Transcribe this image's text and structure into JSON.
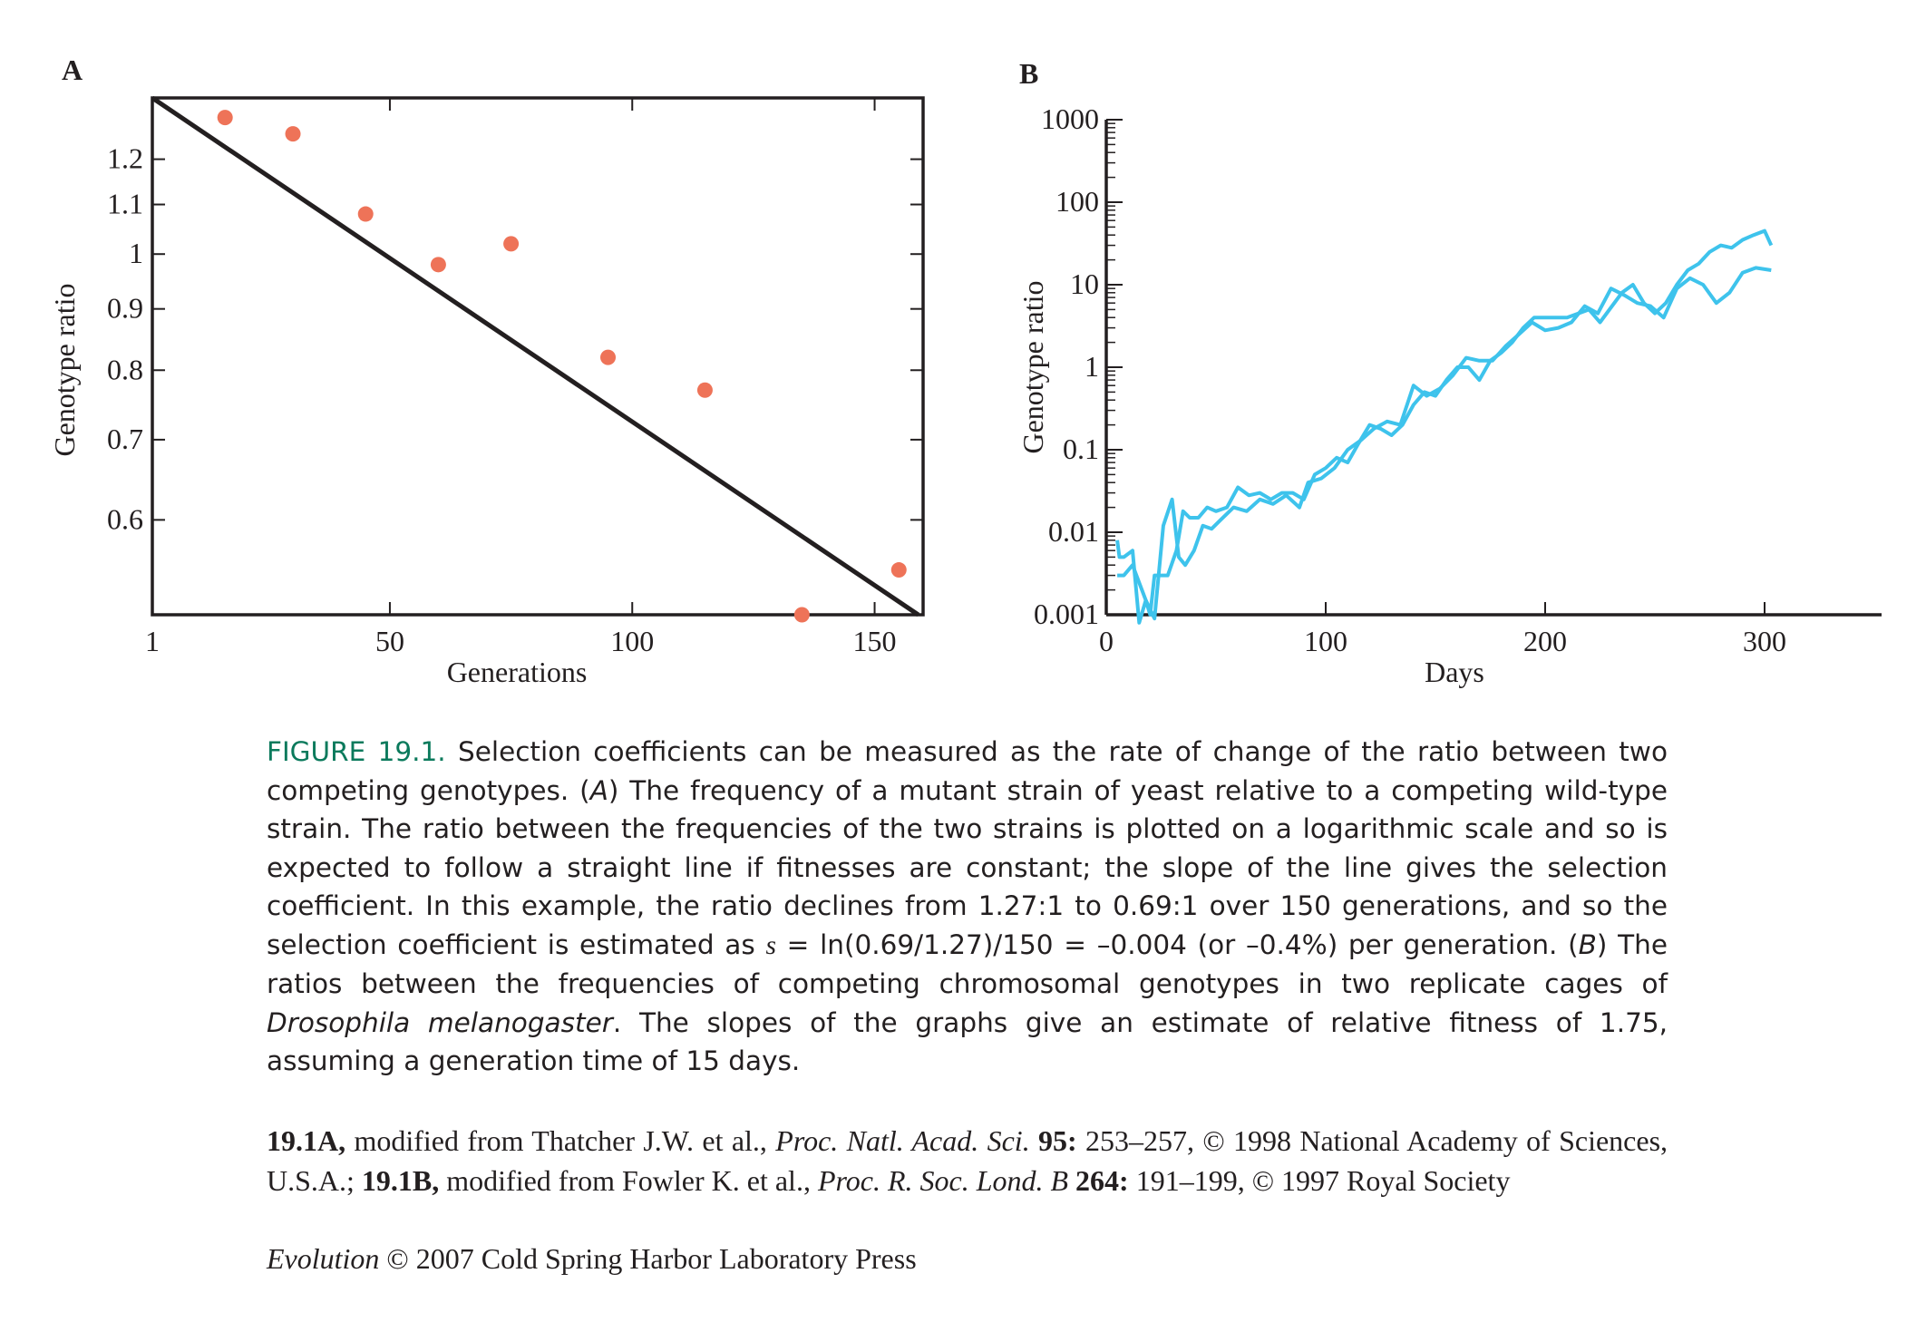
{
  "chart_data": [
    {
      "panel_label": "A",
      "type": "scatter",
      "xlabel": "Generations",
      "ylabel": "Genotype ratio",
      "x_ticks": [
        1,
        50,
        100,
        150
      ],
      "y_ticks": [
        0.6,
        0.7,
        0.8,
        0.9,
        1.0,
        1.1,
        1.2
      ],
      "y_tick_labels": [
        "0.6",
        "0.7",
        "0.8",
        "0.9",
        "1",
        "1.1",
        "1.2"
      ],
      "xlim": [
        1,
        160
      ],
      "ylim": [
        0.5,
        1.35
      ],
      "y_scale": "log",
      "points": [
        {
          "x": 16,
          "y": 1.3
        },
        {
          "x": 30,
          "y": 1.26
        },
        {
          "x": 45,
          "y": 1.08
        },
        {
          "x": 60,
          "y": 0.98
        },
        {
          "x": 75,
          "y": 1.02
        },
        {
          "x": 95,
          "y": 0.82
        },
        {
          "x": 115,
          "y": 0.77
        },
        {
          "x": 135,
          "y": 0.5
        },
        {
          "x": 155,
          "y": 0.545
        }
      ],
      "fit_line": {
        "x": [
          1,
          159
        ],
        "y": [
          1.35,
          0.5
        ]
      },
      "colors": {
        "points": "#ee7358",
        "line": "#231f20"
      }
    },
    {
      "panel_label": "B",
      "type": "line",
      "xlabel": "Days",
      "ylabel": "Genotype ratio",
      "x_ticks": [
        0,
        100,
        200,
        300
      ],
      "y_ticks": [
        0.001,
        0.01,
        0.1,
        1,
        10,
        100,
        1000
      ],
      "y_tick_labels": [
        "0.001",
        "0.01",
        "0.1",
        "1",
        "10",
        "100",
        "1000"
      ],
      "xlim": [
        0,
        360
      ],
      "ylim": [
        0.001,
        1000
      ],
      "y_scale": "log",
      "series": [
        {
          "x": [
            5,
            6,
            8,
            12,
            15,
            18,
            20,
            22,
            28,
            32,
            35,
            38,
            42,
            46,
            50,
            55,
            60,
            65,
            70,
            75,
            80,
            85,
            90,
            95,
            100,
            105,
            110,
            115,
            120,
            125,
            130,
            135,
            140,
            145,
            150,
            155,
            160,
            165,
            170,
            175,
            180,
            185,
            190,
            195,
            200,
            210,
            220,
            225,
            235,
            240,
            245,
            250,
            255,
            260,
            265,
            270,
            275,
            280,
            285,
            290,
            295,
            300,
            303
          ],
          "y": [
            0.008,
            0.005,
            0.005,
            0.006,
            0.0008,
            0.0015,
            0.001,
            0.003,
            0.003,
            0.006,
            0.018,
            0.015,
            0.015,
            0.02,
            0.018,
            0.02,
            0.035,
            0.028,
            0.03,
            0.025,
            0.03,
            0.03,
            0.025,
            0.05,
            0.06,
            0.08,
            0.07,
            0.12,
            0.2,
            0.18,
            0.15,
            0.2,
            0.35,
            0.5,
            0.45,
            0.7,
            1.0,
            1.0,
            0.7,
            1.2,
            1.5,
            2.0,
            3.0,
            4.0,
            4.0,
            4.0,
            5.0,
            3.5,
            8.0,
            10.0,
            6.0,
            4.5,
            6.0,
            10.0,
            15.0,
            18.0,
            25.0,
            30.0,
            28.0,
            35.0,
            40.0,
            45.0,
            30.0
          ]
        },
        {
          "x": [
            5,
            8,
            12,
            18,
            22,
            26,
            30,
            33,
            36,
            40,
            44,
            48,
            52,
            58,
            64,
            70,
            76,
            82,
            88,
            92,
            98,
            104,
            110,
            116,
            122,
            128,
            134,
            140,
            146,
            152,
            158,
            164,
            170,
            176,
            182,
            188,
            194,
            200,
            206,
            212,
            218,
            224,
            230,
            236,
            242,
            248,
            254,
            260,
            266,
            272,
            278,
            284,
            290,
            296,
            303
          ],
          "y": [
            0.003,
            0.003,
            0.004,
            0.0015,
            0.0009,
            0.012,
            0.025,
            0.005,
            0.004,
            0.006,
            0.012,
            0.011,
            0.014,
            0.02,
            0.018,
            0.025,
            0.022,
            0.028,
            0.02,
            0.04,
            0.045,
            0.06,
            0.1,
            0.13,
            0.18,
            0.22,
            0.2,
            0.6,
            0.45,
            0.55,
            0.8,
            1.3,
            1.2,
            1.2,
            1.8,
            2.5,
            3.5,
            2.8,
            3.0,
            3.5,
            5.5,
            4.5,
            9.0,
            7.5,
            6.0,
            5.5,
            4.0,
            9.0,
            12.0,
            10.0,
            6.0,
            8.0,
            14.0,
            16.0,
            15.0
          ]
        }
      ],
      "colors": {
        "line": "#3ec3ec"
      }
    }
  ],
  "caption": {
    "figure_label": "FIGURE 19.1.",
    "t1": " Selection coefficients can be measured as the rate of change of the ratio between two competing genotypes. (",
    "a_label": "A",
    "t2": ") The frequency of a mutant strain of yeast relative to a competing wild-type strain. The ratio between the frequencies of the two strains is plotted on a logarithmic scale and so is expected to follow a straight line if fitnesses are constant; the slope of the line gives the selection coefficient. In this example, the ratio declines from 1.27:1 to 0.69:1 over 150 generations, and so the selection coefficient is estimated as ",
    "s_symbol": "s",
    "t3": " = ln(0.69/1.27)/150 = –0.004 (or –0.4%) per generation. (",
    "b_label": "B",
    "t4": ") The ratios between the frequencies of competing chromosomal genotypes in two replicate cages of ",
    "species": "Drosophila melanogaster",
    "t5": ". The slopes of the graphs give an estimate of relative fitness of 1.75, assuming a generation time of 15 days."
  },
  "credits": {
    "a_ref": "19.1A,",
    "a_text1": " modified from Thatcher J.W. et al., ",
    "a_journal": "Proc. Natl. Acad. Sci.",
    "a_volume": " 95:",
    "a_text2": " 253–257, © 1998 National Academy of Sciences, U.S.A.; ",
    "b_ref": "19.1B,",
    "b_text1": " modified from Fowler K. et al., ",
    "b_journal": "Proc. R. Soc. Lond. B",
    "b_volume": " 264:",
    "b_text2": " 191–199, © 1997 Royal Society"
  },
  "footer": {
    "book": "Evolution",
    "text": " © 2007 Cold Spring Harbor Laboratory Press"
  }
}
